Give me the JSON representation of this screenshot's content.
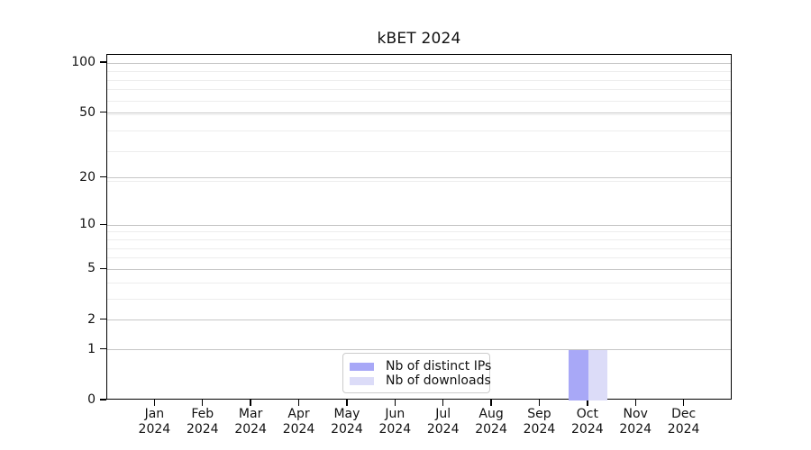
{
  "chart_data": {
    "type": "bar",
    "title": "kBET 2024",
    "x_year": "2024",
    "categories": [
      "Jan",
      "Feb",
      "Mar",
      "Apr",
      "May",
      "Jun",
      "Jul",
      "Aug",
      "Sep",
      "Oct",
      "Nov",
      "Dec"
    ],
    "series": [
      {
        "name": "Nb of distinct IPs",
        "color": "#a8a8f7",
        "values": [
          0,
          0,
          0,
          0,
          0,
          0,
          0,
          0,
          0,
          1,
          0,
          0
        ]
      },
      {
        "name": "Nb of downloads",
        "color": "#dcdcf8",
        "values": [
          0,
          0,
          0,
          0,
          0,
          0,
          0,
          0,
          0,
          1,
          0,
          0
        ]
      }
    ],
    "y_axis": {
      "scale": "log1p",
      "tick_values": [
        0,
        1,
        2,
        5,
        10,
        20,
        50,
        100
      ],
      "minor_grid_log1p_steps": [
        2,
        3,
        4,
        5,
        6,
        7,
        8,
        9,
        10,
        20,
        30,
        40,
        50,
        60,
        70,
        80,
        90,
        100
      ],
      "axis_max_log10": 2.053
    },
    "legend": {
      "position": "lower center inside"
    },
    "grid": true,
    "colors": {
      "background": "#ffffff",
      "spine": "#000000",
      "major_grid": "#c6c6c6",
      "minor_grid": "#ededed",
      "legend_border": "#cccccc",
      "text": "#111111"
    }
  }
}
